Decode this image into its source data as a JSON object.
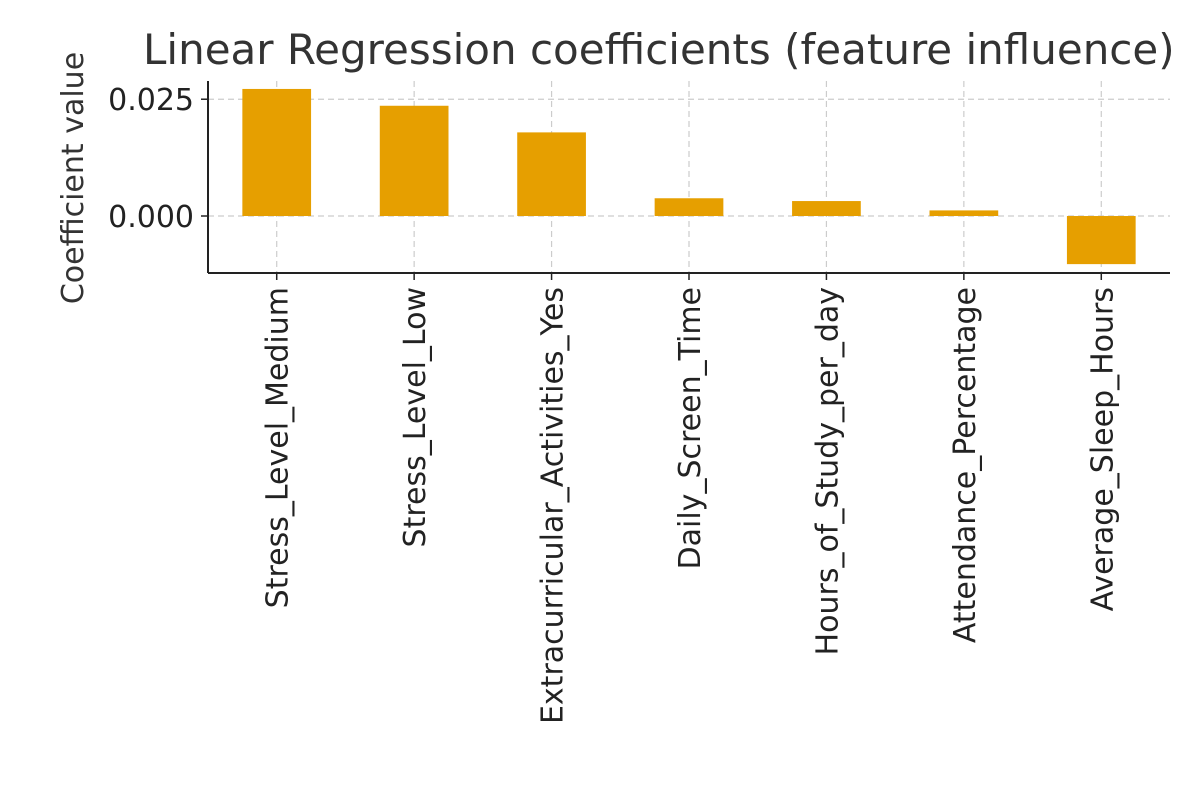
{
  "chart_data": {
    "type": "bar",
    "title": "Linear Regression coefficients (feature influence)",
    "xlabel": "",
    "ylabel": "Coefficient value",
    "categories": [
      "Stress_Level_Medium",
      "Stress_Level_Low",
      "Extracurricular_Activities_Yes",
      "Daily_Screen_Time",
      "Hours_of_Study_per_day",
      "Attendance_Percentage",
      "Average_Sleep_Hours"
    ],
    "values": [
      0.0272,
      0.0236,
      0.0179,
      0.0038,
      0.0032,
      0.0012,
      -0.0103
    ],
    "yticks": [
      0.0,
      0.025
    ],
    "ytick_labels": [
      "0.000",
      "0.025"
    ],
    "ylim": [
      -0.0122,
      0.0289
    ],
    "bar_color": "#E69F00",
    "grid": true,
    "legend": "none"
  }
}
